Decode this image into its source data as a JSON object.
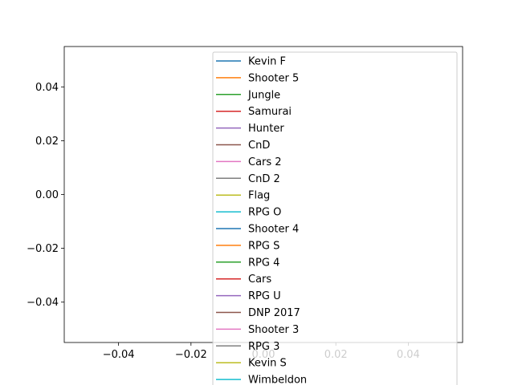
{
  "chart_data": {
    "type": "line",
    "title": "",
    "xlabel": "",
    "ylabel": "",
    "xlim": [
      -0.055,
      0.055
    ],
    "ylim": [
      -0.055,
      0.055
    ],
    "x_ticks": [
      -0.04,
      -0.02,
      0.0,
      0.02,
      0.04
    ],
    "x_tick_labels": [
      "−0.04",
      "−0.02",
      "0.00",
      "0.02",
      "0.04"
    ],
    "y_ticks": [
      0.04,
      0.02,
      0.0,
      -0.02,
      -0.04
    ],
    "y_tick_labels": [
      "0.04",
      "0.02",
      "0.00",
      "−0.02",
      "−0.04"
    ],
    "grid": false,
    "legend_position": "upper right, overflowing below the axes",
    "series": [
      {
        "name": "Kevin F",
        "color": "#1f77b4",
        "x": [],
        "y": []
      },
      {
        "name": "Shooter 5",
        "color": "#ff7f0e",
        "x": [],
        "y": []
      },
      {
        "name": "Jungle",
        "color": "#2ca02c",
        "x": [],
        "y": []
      },
      {
        "name": "Samurai",
        "color": "#d62728",
        "x": [],
        "y": []
      },
      {
        "name": "Hunter",
        "color": "#9467bd",
        "x": [],
        "y": []
      },
      {
        "name": "CnD",
        "color": "#8c564b",
        "x": [],
        "y": []
      },
      {
        "name": "Cars 2",
        "color": "#e377c2",
        "x": [],
        "y": []
      },
      {
        "name": "CnD 2",
        "color": "#7f7f7f",
        "x": [],
        "y": []
      },
      {
        "name": "Flag",
        "color": "#bcbd22",
        "x": [],
        "y": []
      },
      {
        "name": "RPG O",
        "color": "#17becf",
        "x": [],
        "y": []
      },
      {
        "name": "Shooter 4",
        "color": "#1f77b4",
        "x": [],
        "y": []
      },
      {
        "name": "RPG S",
        "color": "#ff7f0e",
        "x": [],
        "y": []
      },
      {
        "name": "RPG 4",
        "color": "#2ca02c",
        "x": [],
        "y": []
      },
      {
        "name": "Cars",
        "color": "#d62728",
        "x": [],
        "y": []
      },
      {
        "name": "RPG U",
        "color": "#9467bd",
        "x": [],
        "y": []
      },
      {
        "name": "DNP 2017",
        "color": "#8c564b",
        "x": [],
        "y": []
      },
      {
        "name": "Shooter 3",
        "color": "#e377c2",
        "x": [],
        "y": []
      },
      {
        "name": "RPG 3",
        "color": "#7f7f7f",
        "x": [],
        "y": []
      },
      {
        "name": "Kevin S",
        "color": "#bcbd22",
        "x": [],
        "y": []
      },
      {
        "name": "Wimbeldon",
        "color": "#17becf",
        "x": [],
        "y": []
      }
    ]
  }
}
